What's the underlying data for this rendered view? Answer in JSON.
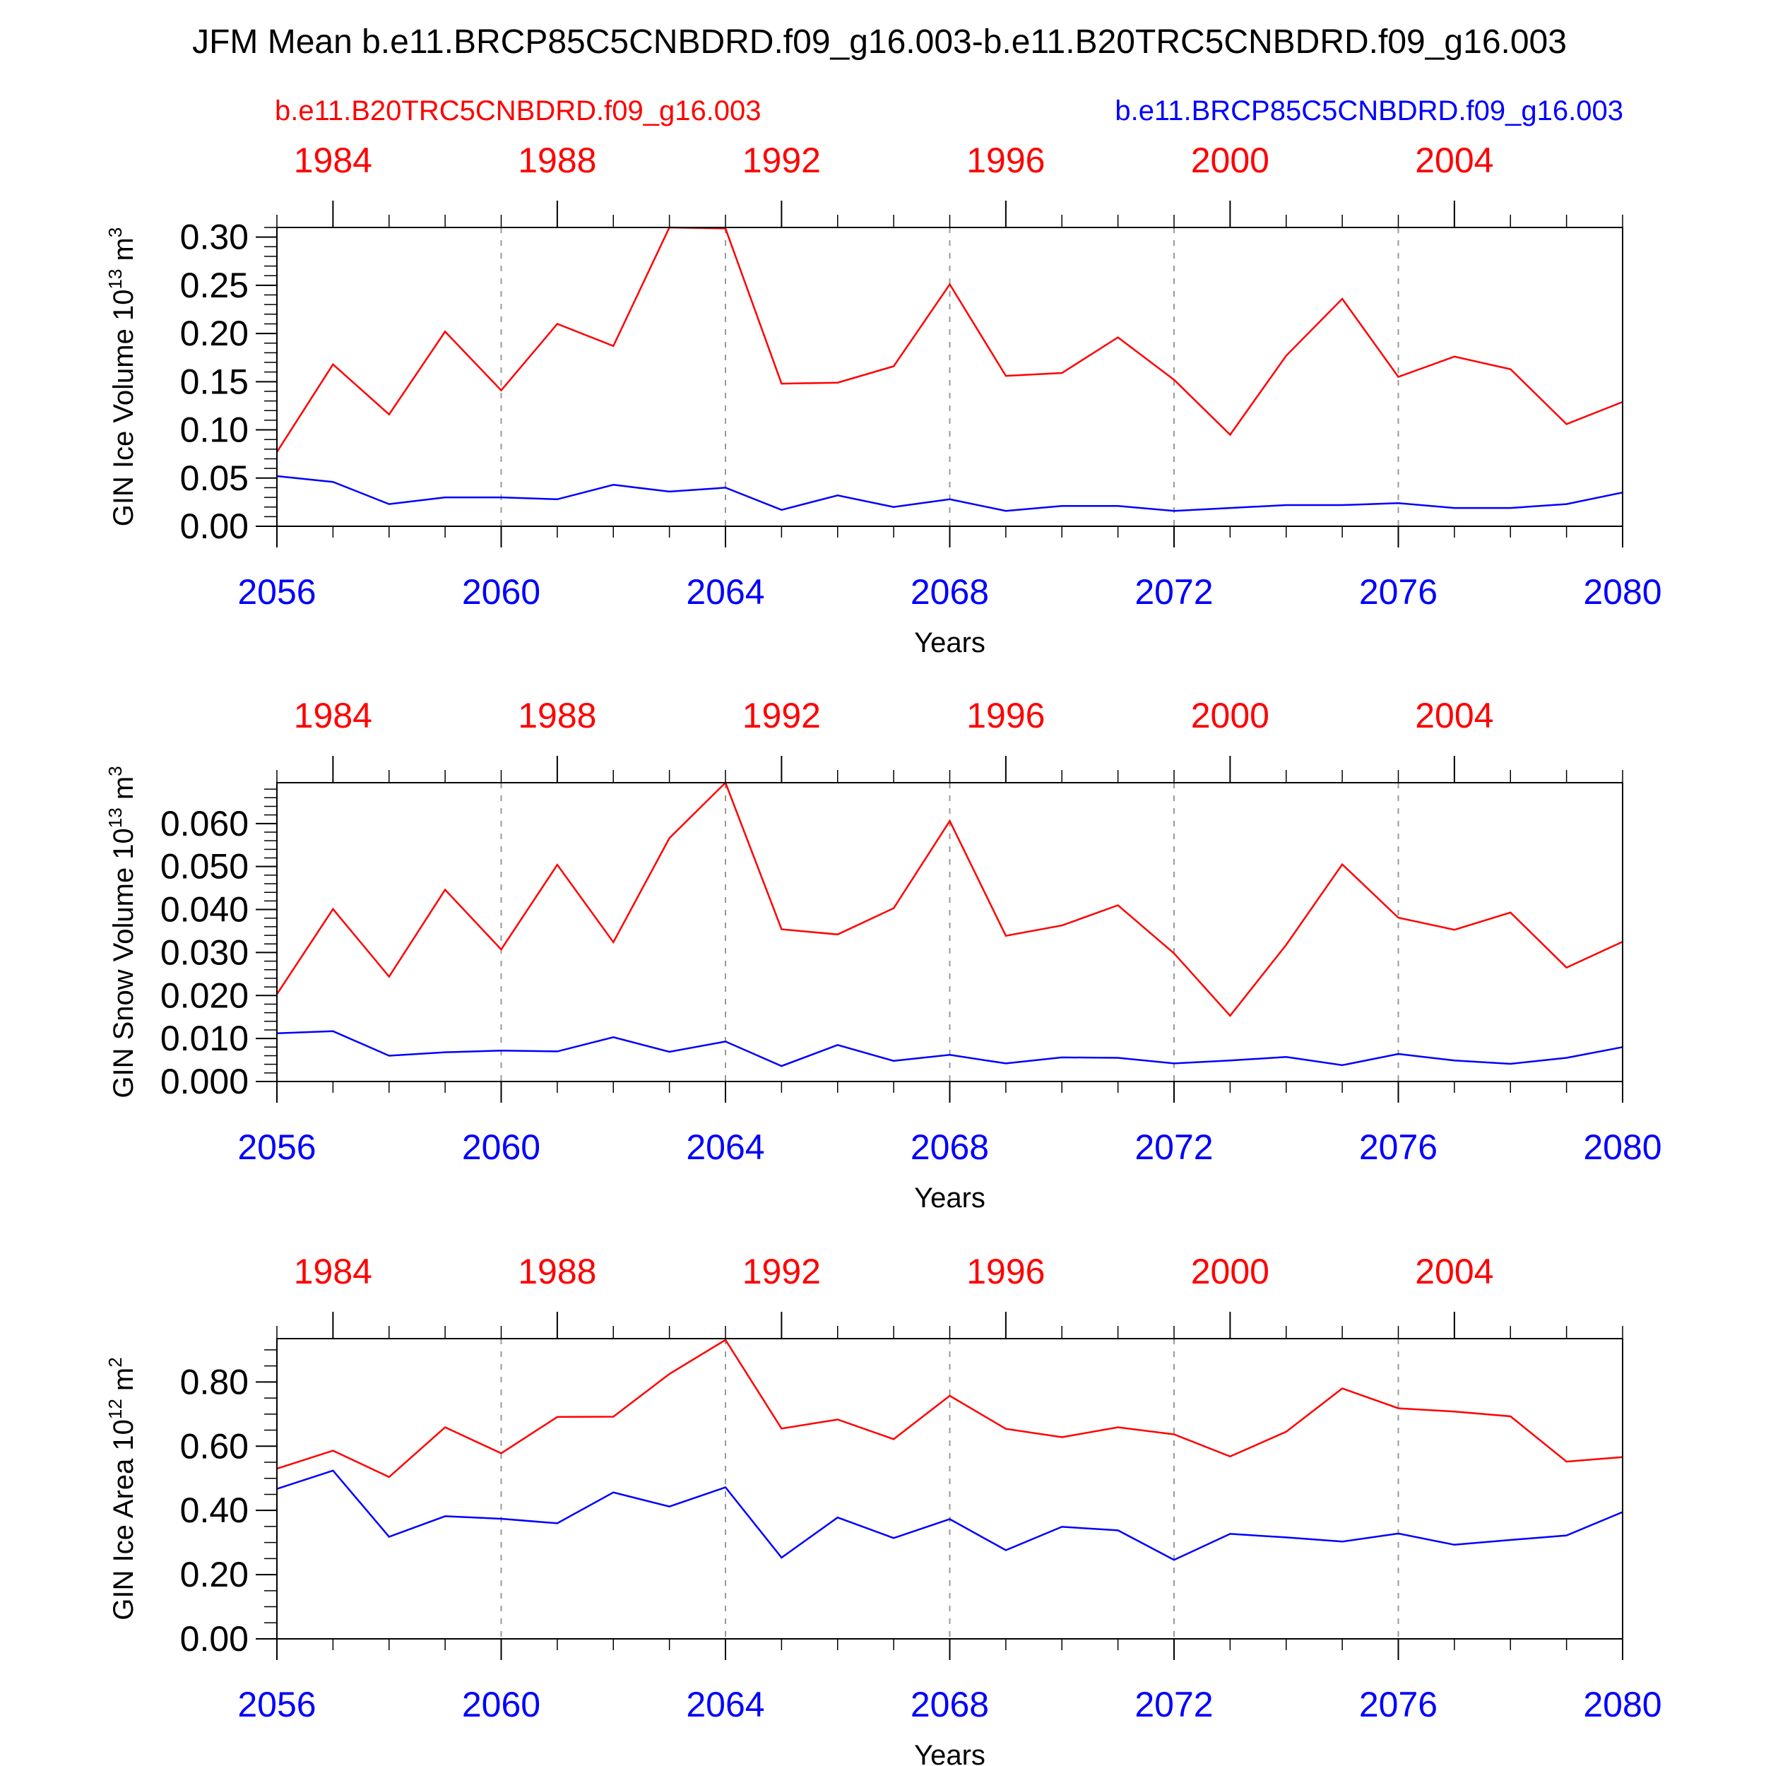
{
  "title": "JFM Mean b.e11.BRCP85C5CNBDRD.f09_g16.003-b.e11.B20TRC5CNBDRD.f09_g16.003",
  "legend": {
    "red_label": "b.e11.B20TRC5CNBDRD.f09_g16.003",
    "blue_label": "b.e11.BRCP85C5CNBDRD.f09_g16.003"
  },
  "colors": {
    "red": "#ff0000",
    "blue": "#0000ff",
    "axis": "#000000",
    "grid": "#999999"
  },
  "chart_data": [
    {
      "type": "line",
      "ylabel_main": "GIN Ice Volume 10",
      "ylabel_exp": "13",
      "ylabel_unit": "m",
      "ylabel_unit_exp": "3",
      "xlabel": "Years",
      "x": [
        2056,
        2057,
        2058,
        2059,
        2060,
        2061,
        2062,
        2063,
        2064,
        2065,
        2066,
        2067,
        2068,
        2069,
        2070,
        2071,
        2072,
        2073,
        2074,
        2075,
        2076,
        2077,
        2078,
        2079,
        2080
      ],
      "xlim": [
        2056,
        2080
      ],
      "ylim": [
        0,
        0.31
      ],
      "y_ticks": [
        0,
        0.05,
        0.1,
        0.15,
        0.2,
        0.25,
        0.3
      ],
      "y_tick_labels": [
        "0.00",
        "0.05",
        "0.10",
        "0.15",
        "0.20",
        "0.25",
        "0.30"
      ],
      "y_minor_step": 0.01,
      "bottom_ticks": [
        2056,
        2060,
        2064,
        2068,
        2072,
        2076,
        2080
      ],
      "bottom_tick_labels": [
        "2056",
        "2060",
        "2064",
        "2068",
        "2072",
        "2076",
        "2080"
      ],
      "top_ticks": [
        1984,
        1988,
        1992,
        1996,
        2000,
        2004
      ],
      "top_tick_labels": [
        "1984",
        "1988",
        "1992",
        "1996",
        "2000",
        "2004"
      ],
      "top_offset": -73,
      "series": [
        {
          "color": "red",
          "values": [
            0.077,
            0.168,
            0.116,
            0.202,
            0.141,
            0.21,
            0.187,
            0.31,
            0.309,
            0.148,
            0.149,
            0.166,
            0.251,
            0.156,
            0.159,
            0.196,
            0.152,
            0.095,
            0.177,
            0.236,
            0.155,
            0.176,
            0.163,
            0.106,
            0.129
          ]
        },
        {
          "color": "blue",
          "values": [
            0.052,
            0.046,
            0.023,
            0.03,
            0.03,
            0.028,
            0.043,
            0.036,
            0.04,
            0.017,
            0.032,
            0.02,
            0.028,
            0.016,
            0.021,
            0.021,
            0.016,
            0.019,
            0.022,
            0.022,
            0.024,
            0.019,
            0.019,
            0.023,
            0.035
          ]
        }
      ]
    },
    {
      "type": "line",
      "ylabel_main": "GIN Snow Volume 10",
      "ylabel_exp": "13",
      "ylabel_unit": "m",
      "ylabel_unit_exp": "3",
      "xlabel": "Years",
      "x": [
        2056,
        2057,
        2058,
        2059,
        2060,
        2061,
        2062,
        2063,
        2064,
        2065,
        2066,
        2067,
        2068,
        2069,
        2070,
        2071,
        2072,
        2073,
        2074,
        2075,
        2076,
        2077,
        2078,
        2079,
        2080
      ],
      "xlim": [
        2056,
        2080
      ],
      "ylim": [
        0,
        0.0695
      ],
      "y_ticks": [
        0,
        0.01,
        0.02,
        0.03,
        0.04,
        0.05,
        0.06
      ],
      "y_tick_labels": [
        "0.000",
        "0.010",
        "0.020",
        "0.030",
        "0.040",
        "0.050",
        "0.060"
      ],
      "y_minor_step": 0.002,
      "bottom_ticks": [
        2056,
        2060,
        2064,
        2068,
        2072,
        2076,
        2080
      ],
      "bottom_tick_labels": [
        "2056",
        "2060",
        "2064",
        "2068",
        "2072",
        "2076",
        "2080"
      ],
      "top_ticks": [
        1984,
        1988,
        1992,
        1996,
        2000,
        2004
      ],
      "top_tick_labels": [
        "1984",
        "1988",
        "1992",
        "1996",
        "2000",
        "2004"
      ],
      "top_offset": -73,
      "series": [
        {
          "color": "red",
          "values": [
            0.0203,
            0.0401,
            0.0244,
            0.0446,
            0.0307,
            0.0504,
            0.0324,
            0.0566,
            0.0695,
            0.0354,
            0.0342,
            0.0403,
            0.0606,
            0.0339,
            0.0363,
            0.041,
            0.0298,
            0.0153,
            0.0318,
            0.0505,
            0.0381,
            0.0353,
            0.0393,
            0.0265,
            0.0325
          ]
        },
        {
          "color": "blue",
          "values": [
            0.0112,
            0.0117,
            0.006,
            0.0068,
            0.0072,
            0.007,
            0.0103,
            0.0069,
            0.0093,
            0.0036,
            0.0085,
            0.0048,
            0.0062,
            0.0042,
            0.0056,
            0.0055,
            0.0042,
            0.0049,
            0.0057,
            0.0038,
            0.0064,
            0.0049,
            0.0041,
            0.0055,
            0.008
          ]
        }
      ]
    },
    {
      "type": "line",
      "ylabel_main": "GIN Ice Area 10",
      "ylabel_exp": "12",
      "ylabel_unit": "m",
      "ylabel_unit_exp": "2",
      "xlabel": "Years",
      "x": [
        2056,
        2057,
        2058,
        2059,
        2060,
        2061,
        2062,
        2063,
        2064,
        2065,
        2066,
        2067,
        2068,
        2069,
        2070,
        2071,
        2072,
        2073,
        2074,
        2075,
        2076,
        2077,
        2078,
        2079,
        2080
      ],
      "xlim": [
        2056,
        2080
      ],
      "ylim": [
        0,
        0.935
      ],
      "y_ticks": [
        0,
        0.2,
        0.4,
        0.6,
        0.8
      ],
      "y_tick_labels": [
        "0.00",
        "0.20",
        "0.40",
        "0.60",
        "0.80"
      ],
      "y_minor_step": 0.05,
      "bottom_ticks": [
        2056,
        2060,
        2064,
        2068,
        2072,
        2076,
        2080
      ],
      "bottom_tick_labels": [
        "2056",
        "2060",
        "2064",
        "2068",
        "2072",
        "2076",
        "2080"
      ],
      "top_ticks": [
        1984,
        1988,
        1992,
        1996,
        2000,
        2004
      ],
      "top_tick_labels": [
        "1984",
        "1988",
        "1992",
        "1996",
        "2000",
        "2004"
      ],
      "top_offset": -73,
      "series": [
        {
          "color": "red",
          "values": [
            0.53,
            0.586,
            0.504,
            0.659,
            0.578,
            0.691,
            0.692,
            0.825,
            0.931,
            0.655,
            0.683,
            0.622,
            0.757,
            0.654,
            0.628,
            0.659,
            0.637,
            0.568,
            0.645,
            0.78,
            0.718,
            0.708,
            0.693,
            0.552,
            0.566
          ]
        },
        {
          "color": "blue",
          "values": [
            0.467,
            0.524,
            0.318,
            0.382,
            0.374,
            0.36,
            0.456,
            0.412,
            0.472,
            0.253,
            0.378,
            0.314,
            0.373,
            0.276,
            0.349,
            0.338,
            0.246,
            0.327,
            0.316,
            0.303,
            0.328,
            0.293,
            0.308,
            0.322,
            0.395
          ]
        }
      ]
    }
  ]
}
